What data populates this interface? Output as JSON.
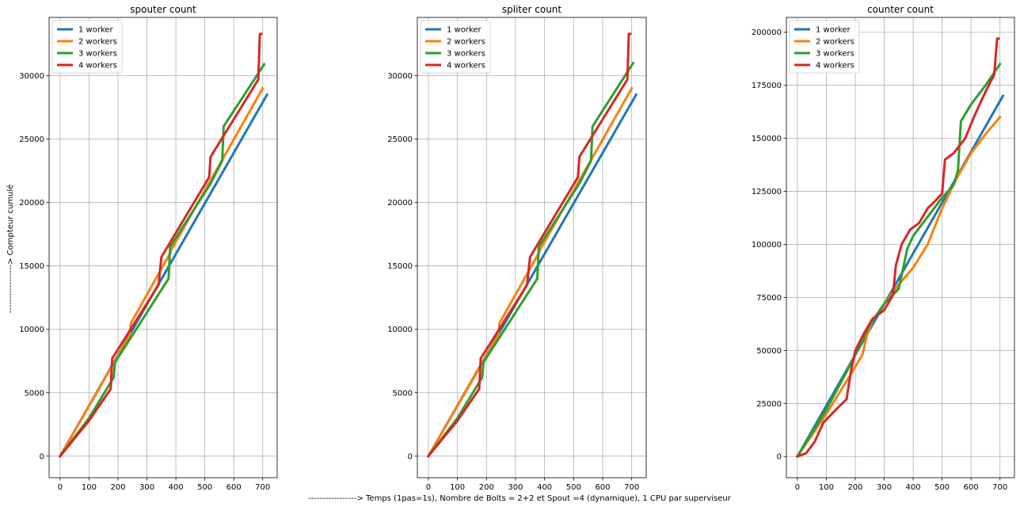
{
  "figure": {
    "ylabel": "-----------------> Compteur cumulé",
    "xlabel": "-----------------> Temps (1pas=1s), Nombre de Bolts = 2+2 et Spout =4 (dynamique), 1 CPU par superviseur"
  },
  "chart_data": [
    {
      "type": "line",
      "title": "spouter count",
      "xlim": [
        -38,
        750
      ],
      "ylim": [
        -1700,
        34600
      ],
      "xticks": [
        0,
        100,
        200,
        300,
        400,
        500,
        600,
        700
      ],
      "yticks": [
        0,
        5000,
        10000,
        15000,
        20000,
        25000,
        30000
      ],
      "ytick_labels": [
        "0",
        "5000",
        "10000",
        "15000",
        "20000",
        "25000",
        "30000"
      ],
      "grid": true,
      "legend": "upper left",
      "series": [
        {
          "name": "1 worker",
          "color": "#1f77b4",
          "points": [
            [
              0,
              0
            ],
            [
              715,
              28500
            ]
          ]
        },
        {
          "name": "2 workers",
          "color": "#ff7f0e",
          "points": [
            [
              0,
              0
            ],
            [
              240,
              9500
            ],
            [
              245,
              10500
            ],
            [
              380,
              16000
            ],
            [
              385,
              16300
            ],
            [
              700,
              29000
            ]
          ]
        },
        {
          "name": "3 workers",
          "color": "#2ca02c",
          "points": [
            [
              0,
              0
            ],
            [
              100,
              3000
            ],
            [
              185,
              6200
            ],
            [
              190,
              7400
            ],
            [
              375,
              14000
            ],
            [
              380,
              16500
            ],
            [
              520,
              21500
            ],
            [
              560,
              23300
            ],
            [
              565,
              26000
            ],
            [
              705,
              30900
            ]
          ]
        },
        {
          "name": "4 workers",
          "color": "#d62728",
          "points": [
            [
              0,
              0
            ],
            [
              100,
              2800
            ],
            [
              175,
              5300
            ],
            [
              180,
              7700
            ],
            [
              340,
              13500
            ],
            [
              350,
              15700
            ],
            [
              515,
              22000
            ],
            [
              520,
              23600
            ],
            [
              685,
              29700
            ],
            [
              690,
              33300
            ],
            [
              695,
              33300
            ]
          ]
        }
      ]
    },
    {
      "type": "line",
      "title": "spliter count",
      "xlim": [
        -38,
        750
      ],
      "ylim": [
        -1700,
        34600
      ],
      "xticks": [
        0,
        100,
        200,
        300,
        400,
        500,
        600,
        700
      ],
      "yticks": [
        0,
        5000,
        10000,
        15000,
        20000,
        25000,
        30000
      ],
      "ytick_labels": [
        "0",
        "5000",
        "10000",
        "15000",
        "20000",
        "25000",
        "30000"
      ],
      "grid": true,
      "legend": "upper left",
      "series": [
        {
          "name": "1 worker",
          "color": "#1f77b4",
          "points": [
            [
              0,
              0
            ],
            [
              715,
              28500
            ]
          ]
        },
        {
          "name": "2 workers",
          "color": "#ff7f0e",
          "points": [
            [
              0,
              0
            ],
            [
              240,
              9500
            ],
            [
              245,
              10500
            ],
            [
              380,
              16000
            ],
            [
              385,
              16300
            ],
            [
              700,
              29000
            ]
          ]
        },
        {
          "name": "3 workers",
          "color": "#2ca02c",
          "points": [
            [
              0,
              0
            ],
            [
              100,
              3000
            ],
            [
              185,
              6200
            ],
            [
              190,
              7400
            ],
            [
              375,
              14000
            ],
            [
              380,
              16500
            ],
            [
              520,
              21500
            ],
            [
              560,
              23300
            ],
            [
              565,
              26000
            ],
            [
              705,
              31000
            ]
          ]
        },
        {
          "name": "4 workers",
          "color": "#d62728",
          "points": [
            [
              0,
              0
            ],
            [
              100,
              2800
            ],
            [
              175,
              5300
            ],
            [
              180,
              7700
            ],
            [
              340,
              13500
            ],
            [
              350,
              15700
            ],
            [
              515,
              22000
            ],
            [
              520,
              23600
            ],
            [
              685,
              29700
            ],
            [
              690,
              33300
            ],
            [
              695,
              33300
            ]
          ]
        }
      ]
    },
    {
      "type": "line",
      "title": "counter count",
      "xlim": [
        -38,
        750
      ],
      "ylim": [
        -10000,
        207000
      ],
      "xticks": [
        0,
        100,
        200,
        300,
        400,
        500,
        600,
        700
      ],
      "yticks": [
        0,
        25000,
        50000,
        75000,
        100000,
        125000,
        150000,
        175000,
        200000
      ],
      "ytick_labels": [
        "0",
        "25000",
        "50000",
        "75000",
        "100000",
        "125000",
        "150000",
        "175000",
        "200000"
      ],
      "grid": true,
      "legend": "upper left",
      "series": [
        {
          "name": "1 worker",
          "color": "#1f77b4",
          "points": [
            [
              0,
              0
            ],
            [
              710,
              170000
            ]
          ]
        },
        {
          "name": "2 workers",
          "color": "#ff7f0e",
          "points": [
            [
              0,
              0
            ],
            [
              100,
              20000
            ],
            [
              190,
              40000
            ],
            [
              225,
              48000
            ],
            [
              240,
              57000
            ],
            [
              260,
              64000
            ],
            [
              300,
              72000
            ],
            [
              350,
              81000
            ],
            [
              400,
              89000
            ],
            [
              450,
              100000
            ],
            [
              500,
              117000
            ],
            [
              550,
              131000
            ],
            [
              600,
              143000
            ],
            [
              650,
              152000
            ],
            [
              700,
              160000
            ]
          ]
        },
        {
          "name": "3 workers",
          "color": "#2ca02c",
          "points": [
            [
              0,
              0
            ],
            [
              100,
              22000
            ],
            [
              190,
              45000
            ],
            [
              250,
              62000
            ],
            [
              300,
              72000
            ],
            [
              350,
              79000
            ],
            [
              380,
              98000
            ],
            [
              400,
              104000
            ],
            [
              450,
              113000
            ],
            [
              500,
              122000
            ],
            [
              540,
              128000
            ],
            [
              555,
              135000
            ],
            [
              565,
              158000
            ],
            [
              600,
              166000
            ],
            [
              650,
              175000
            ],
            [
              700,
              185000
            ]
          ]
        },
        {
          "name": "4 workers",
          "color": "#d62728",
          "points": [
            [
              0,
              0
            ],
            [
              30,
              1500
            ],
            [
              60,
              7000
            ],
            [
              90,
              16000
            ],
            [
              140,
              23000
            ],
            [
              170,
              27000
            ],
            [
              185,
              40000
            ],
            [
              200,
              50000
            ],
            [
              230,
              58000
            ],
            [
              260,
              65000
            ],
            [
              300,
              69000
            ],
            [
              330,
              76000
            ],
            [
              340,
              90000
            ],
            [
              360,
              100000
            ],
            [
              390,
              107000
            ],
            [
              420,
              110000
            ],
            [
              450,
              117000
            ],
            [
              480,
              121000
            ],
            [
              500,
              124000
            ],
            [
              510,
              140000
            ],
            [
              540,
              143000
            ],
            [
              580,
              150000
            ],
            [
              610,
              160000
            ],
            [
              650,
              172000
            ],
            [
              680,
              180000
            ],
            [
              690,
              197000
            ],
            [
              695,
              197000
            ]
          ]
        }
      ]
    }
  ]
}
